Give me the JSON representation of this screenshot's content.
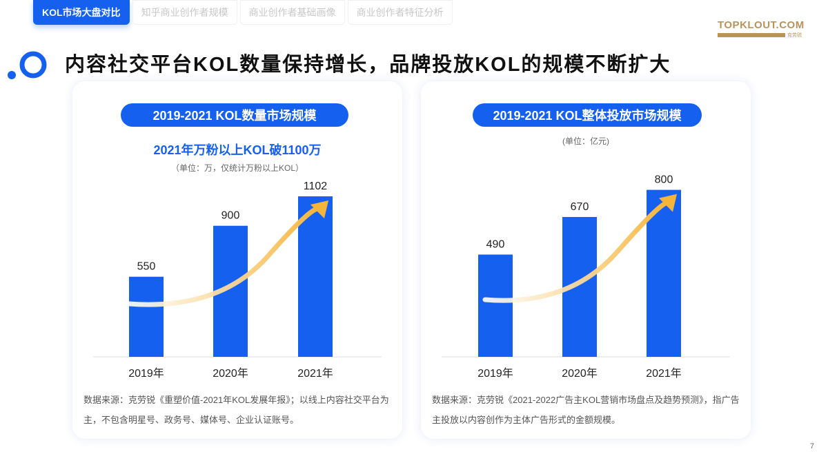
{
  "tabs": [
    "KOL市场大盘对比",
    "知乎商业创作者规模",
    "商业创作者基础画像",
    "商业创作者特征分析"
  ],
  "logo": {
    "text": "TOPKLOUT.COM",
    "sub": "克劳锐"
  },
  "title": "内容社交平台KOL数量保持增长，品牌投放KOL的规模不断扩大",
  "colors": {
    "accent": "#1660f0",
    "arrow": "#f5b53a"
  },
  "left": {
    "pill": "2019-2021 KOL数量市场规模",
    "highlight": "2021年万粉以上KOL破1100万",
    "unit": "（单位：万，仅统计万粉以上KOL）",
    "source": "数据来源：克劳锐《重塑价值-2021年KOL发展年报》；以线上内容社交平台为主，不包含明星号、政务号、媒体号、企业认证账号。"
  },
  "right": {
    "pill": "2019-2021 KOL整体投放市场规模",
    "unit": "(单位：亿元)",
    "source": "数据来源：克劳锐《2021-2022广告主KOL营销市场盘点及趋势预测》，指广告主投放以内容创作为主体广告形式的金额规模。"
  },
  "page_number": "7",
  "chart_data": [
    {
      "type": "bar",
      "title": "2019-2021 KOL数量市场规模",
      "categories": [
        "2019年",
        "2020年",
        "2021年"
      ],
      "values": [
        550,
        900,
        1102
      ],
      "ylabel": "万",
      "ylim": [
        0,
        1400
      ]
    },
    {
      "type": "bar",
      "title": "2019-2021 KOL整体投放市场规模",
      "categories": [
        "2019年",
        "2020年",
        "2021年"
      ],
      "values": [
        490,
        670,
        800
      ],
      "ylabel": "亿元",
      "ylim": [
        0,
        1000
      ]
    }
  ]
}
